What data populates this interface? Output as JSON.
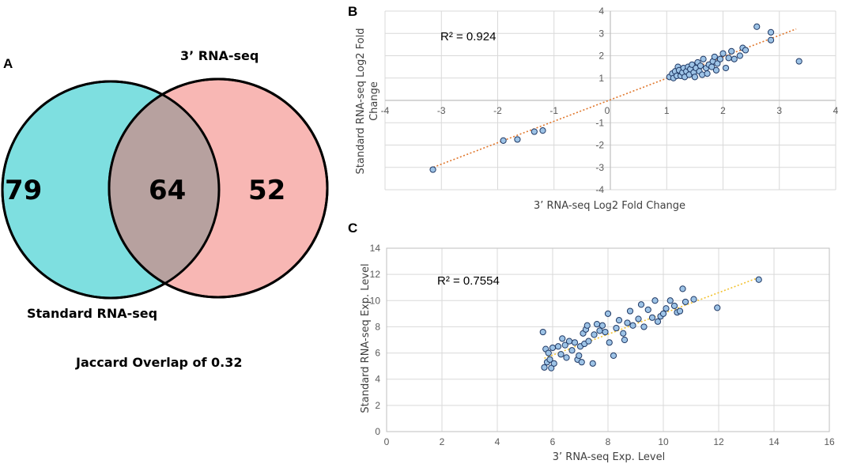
{
  "panels": {
    "a": "A",
    "b": "B",
    "c": "C"
  },
  "colors": {
    "standard": "#7edfe0",
    "three_prime": "#f8b7b4",
    "overlap": "#b7a19f",
    "point_fill": "#9dc3e6",
    "point_stroke": "#1f3864",
    "trend_b": "#e0762b",
    "trend_c": "#f2c230",
    "grid": "#d9d9d9",
    "axis": "#bfbfbf"
  },
  "chart_data": [
    {
      "type": "venn",
      "sets": [
        {
          "name": "Standard RNA-seq",
          "only": 79
        },
        {
          "name": "3’ RNA-seq",
          "only": 52
        }
      ],
      "overlap": 64,
      "caption": "Jaccard Overlap of 0.32"
    },
    {
      "type": "scatter",
      "xlabel": "3’ RNA-seq Log2 Fold Change",
      "ylabel_line1": "Standard RNA-seq Log2 Fold",
      "ylabel_line2": "Change",
      "xlim": [
        -4,
        4
      ],
      "ylim": [
        -4,
        4
      ],
      "xticks": [
        -4,
        -3,
        -2,
        -1,
        0,
        1,
        2,
        3,
        4
      ],
      "yticks": [
        -4,
        -3,
        -2,
        -1,
        0,
        1,
        2,
        3,
        4
      ],
      "annotation": "R² = 0.924",
      "trendline": {
        "x0": -3.2,
        "y0": -3.05,
        "x1": 3.3,
        "y1": 3.2
      },
      "points": [
        [
          -3.15,
          -3.1
        ],
        [
          -1.9,
          -1.8
        ],
        [
          -1.65,
          -1.75
        ],
        [
          -1.35,
          -1.4
        ],
        [
          -1.2,
          -1.35
        ],
        [
          1.05,
          1.05
        ],
        [
          1.1,
          1.2
        ],
        [
          1.12,
          1.0
        ],
        [
          1.15,
          1.3
        ],
        [
          1.18,
          1.1
        ],
        [
          1.2,
          1.5
        ],
        [
          1.22,
          1.35
        ],
        [
          1.25,
          1.1
        ],
        [
          1.28,
          1.25
        ],
        [
          1.3,
          1.45
        ],
        [
          1.32,
          1.05
        ],
        [
          1.35,
          1.3
        ],
        [
          1.38,
          1.5
        ],
        [
          1.4,
          1.15
        ],
        [
          1.42,
          1.4
        ],
        [
          1.45,
          1.6
        ],
        [
          1.48,
          1.25
        ],
        [
          1.5,
          1.05
        ],
        [
          1.52,
          1.45
        ],
        [
          1.55,
          1.7
        ],
        [
          1.58,
          1.3
        ],
        [
          1.6,
          1.55
        ],
        [
          1.63,
          1.15
        ],
        [
          1.65,
          1.85
        ],
        [
          1.7,
          1.45
        ],
        [
          1.72,
          1.2
        ],
        [
          1.75,
          1.6
        ],
        [
          1.8,
          1.5
        ],
        [
          1.82,
          1.75
        ],
        [
          1.85,
          1.95
        ],
        [
          1.88,
          1.35
        ],
        [
          1.9,
          1.65
        ],
        [
          1.95,
          1.85
        ],
        [
          2.0,
          2.1
        ],
        [
          2.05,
          1.45
        ],
        [
          2.1,
          1.9
        ],
        [
          2.15,
          2.2
        ],
        [
          2.2,
          1.85
        ],
        [
          2.3,
          2.0
        ],
        [
          2.35,
          2.35
        ],
        [
          2.4,
          2.25
        ],
        [
          2.6,
          3.3
        ],
        [
          2.85,
          3.05
        ],
        [
          2.85,
          2.7
        ],
        [
          3.35,
          1.75
        ]
      ]
    },
    {
      "type": "scatter",
      "xlabel": "3’ RNA-seq Exp. Level",
      "ylabel": "Standard RNA-seq Exp. Level",
      "xlim": [
        0,
        16
      ],
      "ylim": [
        0,
        14
      ],
      "xticks": [
        0,
        2,
        4,
        6,
        8,
        10,
        12,
        14,
        16
      ],
      "yticks": [
        0,
        2,
        4,
        6,
        8,
        10,
        12,
        14
      ],
      "annotation": "R² = 0.7554",
      "trendline": {
        "x0": 5.7,
        "y0": 5.6,
        "x1": 13.5,
        "y1": 11.8
      },
      "points": [
        [
          5.65,
          7.6
        ],
        [
          5.7,
          4.9
        ],
        [
          5.75,
          6.3
        ],
        [
          5.8,
          5.3
        ],
        [
          5.85,
          6.0
        ],
        [
          5.9,
          5.5
        ],
        [
          5.95,
          4.85
        ],
        [
          6.0,
          6.4
        ],
        [
          6.05,
          5.2
        ],
        [
          6.2,
          6.5
        ],
        [
          6.3,
          5.9
        ],
        [
          6.35,
          7.1
        ],
        [
          6.45,
          6.6
        ],
        [
          6.5,
          5.65
        ],
        [
          6.6,
          6.9
        ],
        [
          6.7,
          6.2
        ],
        [
          6.8,
          6.8
        ],
        [
          6.9,
          5.5
        ],
        [
          6.95,
          5.8
        ],
        [
          7.0,
          6.5
        ],
        [
          7.05,
          5.3
        ],
        [
          7.1,
          7.5
        ],
        [
          7.15,
          6.7
        ],
        [
          7.2,
          7.8
        ],
        [
          7.25,
          8.1
        ],
        [
          7.3,
          6.9
        ],
        [
          7.45,
          5.2
        ],
        [
          7.5,
          7.4
        ],
        [
          7.6,
          8.2
        ],
        [
          7.7,
          7.7
        ],
        [
          7.8,
          8.1
        ],
        [
          7.9,
          7.6
        ],
        [
          8.0,
          9.0
        ],
        [
          8.05,
          6.8
        ],
        [
          8.2,
          5.8
        ],
        [
          8.3,
          7.9
        ],
        [
          8.4,
          8.5
        ],
        [
          8.55,
          7.5
        ],
        [
          8.6,
          7.0
        ],
        [
          8.7,
          8.3
        ],
        [
          8.8,
          9.2
        ],
        [
          8.9,
          8.1
        ],
        [
          9.1,
          8.6
        ],
        [
          9.2,
          9.7
        ],
        [
          9.3,
          8.0
        ],
        [
          9.45,
          9.3
        ],
        [
          9.6,
          8.7
        ],
        [
          9.7,
          10.0
        ],
        [
          9.8,
          8.4
        ],
        [
          9.9,
          8.8
        ],
        [
          10.0,
          9.0
        ],
        [
          10.1,
          9.4
        ],
        [
          10.25,
          10.0
        ],
        [
          10.4,
          9.6
        ],
        [
          10.5,
          9.1
        ],
        [
          10.6,
          9.2
        ],
        [
          10.7,
          10.9
        ],
        [
          10.8,
          9.9
        ],
        [
          11.1,
          10.1
        ],
        [
          11.95,
          9.45
        ],
        [
          13.45,
          11.6
        ]
      ]
    }
  ]
}
